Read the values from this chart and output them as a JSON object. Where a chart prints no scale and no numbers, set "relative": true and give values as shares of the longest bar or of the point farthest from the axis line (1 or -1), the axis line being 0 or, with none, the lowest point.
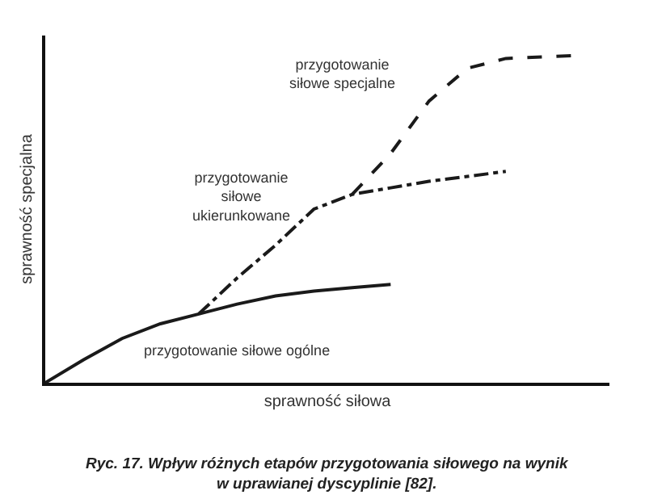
{
  "chart_data": {
    "type": "line",
    "relative": true,
    "xlabel": "sprawność siłowa",
    "ylabel": "sprawność specjalna",
    "legend": false,
    "grid": false,
    "marker": "none",
    "categories": [
      null,
      null,
      null,
      null,
      null,
      null,
      null,
      null,
      null,
      null,
      null,
      null,
      null,
      null,
      null
    ],
    "series": [
      {
        "name": "przygotowanie siłowe ogólne",
        "color": "#1a1a1a",
        "line_style": "solid",
        "values": [
          0,
          0.07,
          0.135,
          0.18,
          0.21,
          0.24,
          0.265,
          0.28,
          0.29,
          0.3,
          null,
          null,
          null,
          null,
          null
        ]
      },
      {
        "name": "przygotowanie\nsiłowe\nukierunkowane",
        "color": "#1a1a1a",
        "line_style": "dashdot",
        "values": [
          null,
          null,
          null,
          null,
          0.21,
          0.32,
          0.42,
          0.53,
          0.575,
          0.595,
          0.615,
          0.63,
          0.645,
          null,
          null
        ]
      },
      {
        "name": "przygotowanie\nsiłowe specjalne",
        "color": "#1a1a1a",
        "line_style": "dashed",
        "values": [
          null,
          null,
          null,
          null,
          null,
          null,
          null,
          null,
          0.575,
          0.7,
          0.86,
          0.96,
          0.99,
          0.995,
          1
        ]
      }
    ],
    "annotations": [
      "Ryc. 17. Wpływ różnych etapów przygotowania siłowego na wynik\nw uprawianej dyscyplinie [82]."
    ]
  }
}
